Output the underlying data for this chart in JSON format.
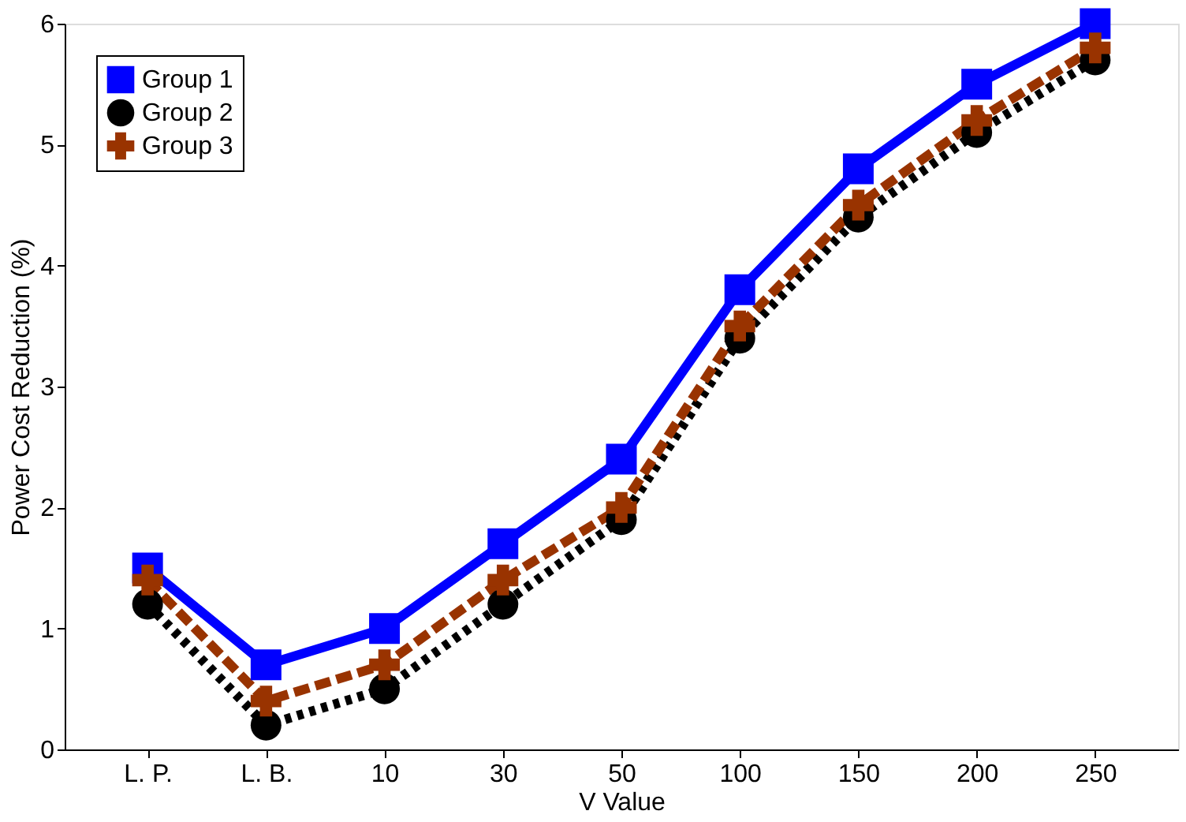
{
  "chart_data": {
    "type": "line",
    "xlabel": "V Value",
    "ylabel": "Power Cost Reduction (%)",
    "categories": [
      "L. P.",
      "L. B.",
      "10",
      "30",
      "50",
      "100",
      "150",
      "200",
      "250"
    ],
    "ylim": [
      0,
      6
    ],
    "yticks": [
      0,
      1,
      2,
      3,
      4,
      5,
      6
    ],
    "grid": false,
    "legend": "top left",
    "series": [
      {
        "name": "Group 1",
        "color": "#0000ff",
        "marker": "square",
        "line_style": "solid",
        "values": [
          1.5,
          0.7,
          1.0,
          1.7,
          2.4,
          3.8,
          4.8,
          5.5,
          6.0
        ]
      },
      {
        "name": "Group 2",
        "color": "#000000",
        "marker": "circle",
        "line_style": "dotted",
        "values": [
          1.2,
          0.2,
          0.5,
          1.2,
          1.9,
          3.4,
          4.4,
          5.1,
          5.7
        ]
      },
      {
        "name": "Group 3",
        "color": "#993300",
        "marker": "cross",
        "line_style": "dashed",
        "values": [
          1.4,
          0.4,
          0.7,
          1.4,
          2.0,
          3.5,
          4.5,
          5.2,
          5.8
        ]
      }
    ]
  }
}
